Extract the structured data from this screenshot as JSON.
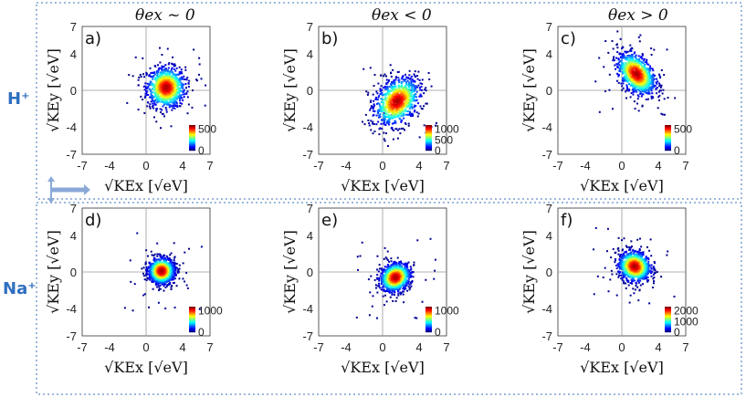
{
  "figure": {
    "column_titles": [
      "θex ~ 0",
      "θex < 0",
      "θex > 0"
    ],
    "row_labels": [
      "H⁺",
      "Na⁺"
    ],
    "colors": {
      "frame": "#9db8dd",
      "row_label": "#2f6fc0",
      "arrow": "#8aa9d8"
    }
  },
  "chart_data": [
    {
      "type": "heatmap",
      "panel": "a)",
      "ion": "H+",
      "theta_ex": "~0",
      "xlabel": "√KEx [√eV]",
      "ylabel": "√KEy [√eV]",
      "xlim": [
        -7,
        7
      ],
      "ylim": [
        -7,
        7
      ],
      "xticks": [
        -7,
        -4,
        0,
        4,
        7
      ],
      "yticks": [
        -7,
        -4,
        0,
        4,
        7
      ],
      "cluster": {
        "center": [
          2.2,
          0.3
        ],
        "spread": [
          1.9,
          2.0
        ],
        "tilt": 0
      },
      "colorbar": {
        "max": 600,
        "ticks": [
          0,
          500
        ]
      }
    },
    {
      "type": "heatmap",
      "panel": "b)",
      "ion": "H+",
      "theta_ex": "<0",
      "xlabel": "√KEx [√eV]",
      "ylabel": "√KEy [√eV]",
      "xlim": [
        -7,
        7
      ],
      "ylim": [
        -7,
        7
      ],
      "xticks": [
        -7,
        -4,
        0,
        4,
        7
      ],
      "yticks": [
        -7,
        -4,
        0,
        4,
        7
      ],
      "cluster": {
        "center": [
          1.6,
          -1.2
        ],
        "spread": [
          2.2,
          2.2
        ],
        "tilt": 0.35
      },
      "colorbar": {
        "max": 1200,
        "ticks": [
          0,
          500,
          1000
        ]
      }
    },
    {
      "type": "heatmap",
      "panel": "c)",
      "ion": "H+",
      "theta_ex": ">0",
      "xlabel": "√KEx [√eV]",
      "ylabel": "√KEy [√eV]",
      "xlim": [
        -7,
        7
      ],
      "ylim": [
        -7,
        7
      ],
      "xticks": [
        -7,
        -4,
        0,
        4,
        7
      ],
      "yticks": [
        -7,
        -4,
        0,
        4,
        7
      ],
      "cluster": {
        "center": [
          1.6,
          1.8
        ],
        "spread": [
          1.9,
          1.9
        ],
        "tilt": -0.45
      },
      "colorbar": {
        "max": 600,
        "ticks": [
          0,
          500
        ]
      }
    },
    {
      "type": "heatmap",
      "panel": "d)",
      "ion": "Na+",
      "theta_ex": "~0",
      "xlabel": "√KEx [√eV]",
      "ylabel": "√KEy [√eV]",
      "xlim": [
        -7,
        7
      ],
      "ylim": [
        -7,
        7
      ],
      "xticks": [
        -7,
        -4,
        0,
        4,
        7
      ],
      "yticks": [
        -7,
        -4,
        0,
        4,
        7
      ],
      "cluster": {
        "center": [
          1.7,
          0.1
        ],
        "spread": [
          1.3,
          1.3
        ],
        "tilt": 0
      },
      "colorbar": {
        "max": 1200,
        "ticks": [
          0,
          1000
        ]
      }
    },
    {
      "type": "heatmap",
      "panel": "e)",
      "ion": "Na+",
      "theta_ex": "<0",
      "xlabel": "√KEx [√eV]",
      "ylabel": "√KEy [√eV]",
      "xlim": [
        -7,
        7
      ],
      "ylim": [
        -7,
        7
      ],
      "xticks": [
        -7,
        -4,
        0,
        4,
        7
      ],
      "yticks": [
        -7,
        -4,
        0,
        4,
        7
      ],
      "cluster": {
        "center": [
          1.4,
          -0.6
        ],
        "spread": [
          1.5,
          1.4
        ],
        "tilt": 0.15
      },
      "colorbar": {
        "max": 1200,
        "ticks": [
          0,
          1000
        ]
      }
    },
    {
      "type": "heatmap",
      "panel": "f)",
      "ion": "Na+",
      "theta_ex": ">0",
      "xlabel": "√KEx [√eV]",
      "ylabel": "√KEy [√eV]",
      "xlim": [
        -7,
        7
      ],
      "ylim": [
        -7,
        7
      ],
      "xticks": [
        -7,
        -4,
        0,
        4,
        7
      ],
      "yticks": [
        -7,
        -4,
        0,
        4,
        7
      ],
      "cluster": {
        "center": [
          1.4,
          0.6
        ],
        "spread": [
          1.6,
          1.5
        ],
        "tilt": -0.1
      },
      "colorbar": {
        "max": 2400,
        "ticks": [
          0,
          1000,
          2000
        ]
      }
    }
  ]
}
